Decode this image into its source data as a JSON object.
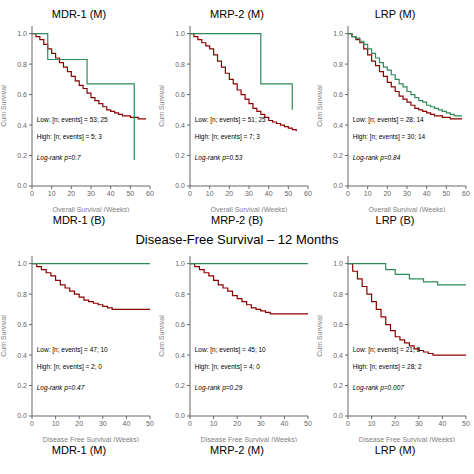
{
  "title": "Disease-Free Survival – 12 Months",
  "chart_data": [
    {
      "type": "step",
      "title": "MDR-1 (M)",
      "subtitle": "MDR-1 (B)",
      "xlabel": "Overall Survival (Weeks)",
      "ylabel": "Cum Survival",
      "xlim": [
        0,
        60
      ],
      "ylim": [
        0,
        1.05
      ],
      "xticks": [
        0,
        10,
        20,
        30,
        40,
        50,
        60
      ],
      "yticks": [
        {
          "value": 0.0,
          "label": "0.0"
        },
        0.2,
        0.4,
        0.6,
        0.8,
        {
          "value": 1.0,
          "label": "1.0"
        }
      ],
      "grid": false,
      "annotations": [
        "Low: [n; events] = 53; 25",
        "High: [n; events] = 5; 3",
        "Log-rank p=0.7"
      ],
      "series": [
        {
          "color": "#8B0000",
          "x": [
            0,
            2,
            4,
            6,
            8,
            10,
            12,
            14,
            16,
            18,
            20,
            22,
            24,
            26,
            28,
            30,
            32,
            34,
            36,
            38,
            40,
            42,
            44,
            46,
            48,
            50,
            52,
            54,
            56,
            58
          ],
          "values": [
            1.0,
            0.98,
            0.96,
            0.93,
            0.9,
            0.87,
            0.84,
            0.81,
            0.78,
            0.75,
            0.72,
            0.69,
            0.66,
            0.64,
            0.61,
            0.58,
            0.56,
            0.54,
            0.52,
            0.5,
            0.49,
            0.48,
            0.47,
            0.46,
            0.46,
            0.45,
            0.45,
            0.44,
            0.44,
            0.44
          ]
        },
        {
          "color": "#2E8B57",
          "x": [
            0,
            4,
            8,
            14,
            20,
            28,
            36,
            44,
            52
          ],
          "values": [
            1.0,
            1.0,
            0.83,
            0.83,
            0.83,
            0.67,
            0.67,
            0.67,
            0.17
          ]
        }
      ]
    },
    {
      "type": "step",
      "title": "MRP-2 (M)",
      "subtitle": "MRP-2 (B)",
      "xlabel": "Overall Survival (Weeks)",
      "ylabel": "Cum Survival",
      "xlim": [
        0,
        60
      ],
      "ylim": [
        0,
        1.05
      ],
      "xticks": [
        0,
        10,
        20,
        30,
        40,
        50,
        60
      ],
      "yticks": [
        {
          "value": 0.0,
          "label": "0.0"
        },
        0.2,
        0.4,
        0.6,
        0.8,
        {
          "value": 1.0,
          "label": "1.0"
        }
      ],
      "grid": false,
      "annotations": [
        "Low: [n; events] = 51; 25",
        "High: [n; events] = 7; 3",
        "Log-rank p=0.53"
      ],
      "series": [
        {
          "color": "#8B0000",
          "x": [
            0,
            2,
            4,
            6,
            8,
            10,
            12,
            14,
            16,
            18,
            20,
            22,
            24,
            26,
            28,
            30,
            32,
            34,
            36,
            38,
            40,
            42,
            44,
            46,
            48,
            50,
            52,
            54
          ],
          "values": [
            1.0,
            0.98,
            0.96,
            0.94,
            0.92,
            0.9,
            0.86,
            0.82,
            0.78,
            0.74,
            0.7,
            0.67,
            0.63,
            0.6,
            0.57,
            0.54,
            0.51,
            0.49,
            0.47,
            0.45,
            0.43,
            0.42,
            0.41,
            0.4,
            0.39,
            0.38,
            0.37,
            0.36
          ]
        },
        {
          "color": "#2E8B57",
          "x": [
            0,
            2,
            4,
            6,
            8,
            10,
            14,
            20,
            28,
            36,
            44,
            52
          ],
          "values": [
            1.0,
            1.0,
            1.0,
            1.0,
            1.0,
            1.0,
            1.0,
            1.0,
            1.0,
            0.67,
            0.67,
            0.5
          ]
        }
      ]
    },
    {
      "type": "step",
      "title": "LRP (M)",
      "subtitle": "LRP (B)",
      "xlabel": "Overall Survival (Weeks)",
      "ylabel": "Cum Survival",
      "xlim": [
        0,
        60
      ],
      "ylim": [
        0,
        1.05
      ],
      "xticks": [
        0,
        10,
        20,
        30,
        40,
        50,
        60
      ],
      "yticks": [
        {
          "value": 0.0,
          "label": "0.0"
        },
        0.2,
        0.4,
        0.6,
        0.8,
        {
          "value": 1.0,
          "label": "1.0"
        }
      ],
      "grid": false,
      "annotations": [
        "Low: [n; events] = 28; 14",
        "High: [n; events] = 30; 14",
        "Log-rank p=0.84"
      ],
      "series": [
        {
          "color": "#8B0000",
          "x": [
            0,
            2,
            4,
            6,
            8,
            10,
            12,
            14,
            16,
            18,
            20,
            22,
            24,
            26,
            28,
            30,
            32,
            34,
            36,
            38,
            40,
            42,
            44,
            46,
            48,
            50,
            52,
            54,
            56,
            58
          ],
          "values": [
            1.0,
            0.98,
            0.96,
            0.94,
            0.9,
            0.86,
            0.82,
            0.79,
            0.75,
            0.72,
            0.68,
            0.65,
            0.62,
            0.59,
            0.57,
            0.55,
            0.53,
            0.51,
            0.5,
            0.49,
            0.48,
            0.47,
            0.46,
            0.46,
            0.45,
            0.45,
            0.44,
            0.44,
            0.44,
            0.44
          ]
        },
        {
          "color": "#2E8B57",
          "x": [
            0,
            2,
            4,
            6,
            8,
            10,
            12,
            14,
            16,
            18,
            20,
            22,
            24,
            26,
            28,
            30,
            32,
            34,
            36,
            38,
            40,
            42,
            44,
            46,
            48,
            50,
            52,
            54,
            56,
            58
          ],
          "values": [
            1.0,
            0.98,
            0.97,
            0.95,
            0.93,
            0.9,
            0.87,
            0.84,
            0.81,
            0.78,
            0.76,
            0.73,
            0.7,
            0.67,
            0.65,
            0.62,
            0.6,
            0.58,
            0.56,
            0.55,
            0.53,
            0.52,
            0.51,
            0.5,
            0.49,
            0.48,
            0.47,
            0.46,
            0.46,
            0.46
          ]
        }
      ]
    },
    {
      "type": "step",
      "subtitle": "MDR-1 (M)",
      "xlabel": "Disease Free Survival (Weeks)",
      "ylabel": "Cum Survival",
      "xlim": [
        0,
        50
      ],
      "ylim": [
        0,
        1.05
      ],
      "xticks": [
        0,
        10,
        20,
        30,
        40,
        50
      ],
      "yticks": [
        {
          "value": 0.0,
          "label": "0.0"
        },
        0.2,
        0.4,
        0.6,
        0.8,
        {
          "value": 1.0,
          "label": "1.0"
        }
      ],
      "grid": false,
      "annotations": [
        "Low: [n; events] = 47; 10",
        "High: [n; events] = 2; 0",
        "Log-rank p=0.47"
      ],
      "series": [
        {
          "color": "#8B0000",
          "x": [
            0,
            2,
            4,
            6,
            8,
            10,
            12,
            14,
            16,
            18,
            20,
            22,
            24,
            26,
            28,
            30,
            32,
            34,
            36,
            38,
            40,
            42,
            44,
            46,
            48,
            50
          ],
          "values": [
            1.0,
            0.98,
            0.96,
            0.94,
            0.92,
            0.89,
            0.86,
            0.84,
            0.82,
            0.8,
            0.78,
            0.76,
            0.75,
            0.74,
            0.73,
            0.72,
            0.71,
            0.7,
            0.7,
            0.7,
            0.7,
            0.7,
            0.7,
            0.7,
            0.7,
            0.7
          ]
        },
        {
          "color": "#2E8B57",
          "x": [
            0,
            50
          ],
          "values": [
            1.0,
            1.0
          ]
        }
      ]
    },
    {
      "type": "step",
      "subtitle": "MRP-2 (M)",
      "xlabel": "Disease Free Survival (Weeks)",
      "ylabel": "Cum Survival",
      "xlim": [
        0,
        50
      ],
      "ylim": [
        0,
        1.05
      ],
      "xticks": [
        0,
        10,
        20,
        30,
        40,
        50
      ],
      "yticks": [
        {
          "value": 0.0,
          "label": "0.0"
        },
        0.2,
        0.4,
        0.6,
        0.8,
        {
          "value": 1.0,
          "label": "1.0"
        }
      ],
      "grid": false,
      "annotations": [
        "Low: [n; events] = 45; 10",
        "High: [n; events] = 4; 0",
        "Log-rank p=0.29"
      ],
      "series": [
        {
          "color": "#8B0000",
          "x": [
            0,
            2,
            4,
            6,
            8,
            10,
            12,
            14,
            16,
            18,
            20,
            22,
            24,
            26,
            28,
            30,
            32,
            34,
            36,
            38,
            40,
            42,
            44,
            46,
            48,
            50
          ],
          "values": [
            1.0,
            0.98,
            0.96,
            0.94,
            0.92,
            0.89,
            0.86,
            0.84,
            0.82,
            0.79,
            0.77,
            0.75,
            0.73,
            0.71,
            0.7,
            0.69,
            0.68,
            0.67,
            0.67,
            0.67,
            0.67,
            0.67,
            0.67,
            0.67,
            0.67,
            0.67
          ]
        },
        {
          "color": "#2E8B57",
          "x": [
            0,
            50
          ],
          "values": [
            1.0,
            1.0
          ]
        }
      ]
    },
    {
      "type": "step",
      "subtitle": "LRP (M)",
      "xlabel": "Disease Free Survival (Weeks)",
      "ylabel": "Cum Survival",
      "xlim": [
        0,
        50
      ],
      "ylim": [
        0,
        1.05
      ],
      "xticks": [
        0,
        10,
        20,
        30,
        40,
        50
      ],
      "yticks": [
        {
          "value": 0.0,
          "label": "0.0"
        },
        0.2,
        0.4,
        0.6,
        0.8,
        {
          "value": 1.0,
          "label": "1.0"
        }
      ],
      "grid": false,
      "annotations": [
        "Low: [n; events] = 21; 8",
        "High: [n; events] = 28; 2",
        "Log-rank p=0.007"
      ],
      "series": [
        {
          "color": "#8B0000",
          "x": [
            0,
            2,
            4,
            6,
            8,
            10,
            12,
            14,
            16,
            18,
            20,
            22,
            24,
            26,
            28,
            30,
            32,
            34,
            36,
            38,
            40,
            42,
            44,
            46,
            48,
            50
          ],
          "values": [
            1.0,
            0.95,
            0.9,
            0.85,
            0.8,
            0.75,
            0.7,
            0.65,
            0.6,
            0.56,
            0.52,
            0.5,
            0.48,
            0.46,
            0.44,
            0.43,
            0.42,
            0.41,
            0.4,
            0.4,
            0.4,
            0.4,
            0.4,
            0.4,
            0.4,
            0.4
          ]
        },
        {
          "color": "#2E8B57",
          "x": [
            0,
            2,
            6,
            10,
            16,
            20,
            26,
            32,
            38,
            44,
            50
          ],
          "values": [
            1.0,
            1.0,
            1.0,
            1.0,
            0.96,
            0.93,
            0.9,
            0.88,
            0.86,
            0.86,
            0.86
          ]
        }
      ]
    }
  ]
}
